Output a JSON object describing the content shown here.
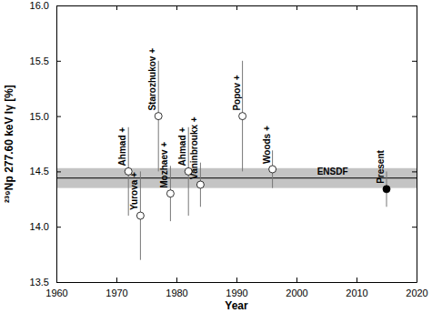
{
  "chart_data": {
    "type": "scatter",
    "x_label": "Year",
    "y_label": "²³⁹Np 277.60 keV Iγ [%]",
    "xlim": [
      1960,
      2020
    ],
    "xticks": [
      1960,
      1970,
      1980,
      1990,
      2000,
      2010,
      2020
    ],
    "ylim": [
      13.5,
      16.0
    ],
    "yticks": [
      13.5,
      {
        "value": 14,
        "label": "14.0"
      },
      14.5,
      {
        "value": 15,
        "label": "15.0"
      },
      15.5,
      {
        "value": 16,
        "label": "16.0"
      }
    ],
    "reference": {
      "label": "ENSDF",
      "value": 14.44,
      "error": 0.09
    },
    "series": [
      {
        "marker": "circle-open",
        "color": "#000000",
        "labels": [
          "Ahmad +",
          "Yurova +",
          "Starozhukov +",
          "Mozhaev +",
          "Ahmad +",
          "Vaninbroukx +",
          "Popov +",
          "Woods +"
        ],
        "x": [
          1972,
          1974,
          1977,
          1979,
          1982,
          1984,
          1991,
          1996
        ],
        "values": [
          14.5,
          14.1,
          15.0,
          14.3,
          14.5,
          14.38,
          15.0,
          14.52
        ],
        "errors": [
          0.4,
          0.4,
          0.5,
          0.25,
          0.4,
          0.2,
          0.5,
          0.17
        ]
      },
      {
        "marker": "circle-filled",
        "color": "#000000",
        "labels": [
          "Present"
        ],
        "x": [
          2015
        ],
        "values": [
          14.34
        ],
        "errors": [
          0.16
        ]
      }
    ]
  }
}
